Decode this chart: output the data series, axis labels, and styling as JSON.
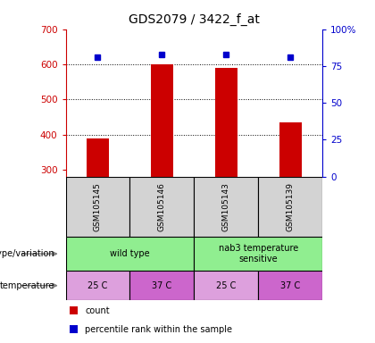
{
  "title": "GDS2079 / 3422_f_at",
  "samples": [
    "GSM105145",
    "GSM105146",
    "GSM105143",
    "GSM105139"
  ],
  "counts": [
    390,
    600,
    590,
    435
  ],
  "percentile_ranks": [
    81,
    83,
    83,
    81
  ],
  "ylim_left": [
    280,
    700
  ],
  "ylim_right": [
    0,
    100
  ],
  "yticks_left": [
    300,
    400,
    500,
    600,
    700
  ],
  "yticks_right": [
    0,
    25,
    50,
    75,
    100
  ],
  "bar_color": "#cc0000",
  "dot_color": "#0000cc",
  "bar_bottom": 280,
  "genotype_data": [
    {
      "label": "wild type",
      "start": 0,
      "end": 2
    },
    {
      "label": "nab3 temperature\nsensitive",
      "start": 2,
      "end": 4
    }
  ],
  "genotype_color": "#90ee90",
  "temperature_labels": [
    "25 C",
    "37 C",
    "25 C",
    "37 C"
  ],
  "temp_colors": [
    "#dda0dd",
    "#cc66cc",
    "#dda0dd",
    "#cc66cc"
  ],
  "left_axis_color": "#cc0000",
  "right_axis_color": "#0000cc",
  "legend_items": [
    {
      "label": "count",
      "color": "#cc0000"
    },
    {
      "label": "percentile rank within the sample",
      "color": "#0000cc"
    }
  ],
  "annot_genotype": "genotype/variation",
  "annot_temperature": "temperature",
  "sample_box_color": "#d3d3d3",
  "bar_width": 0.35
}
